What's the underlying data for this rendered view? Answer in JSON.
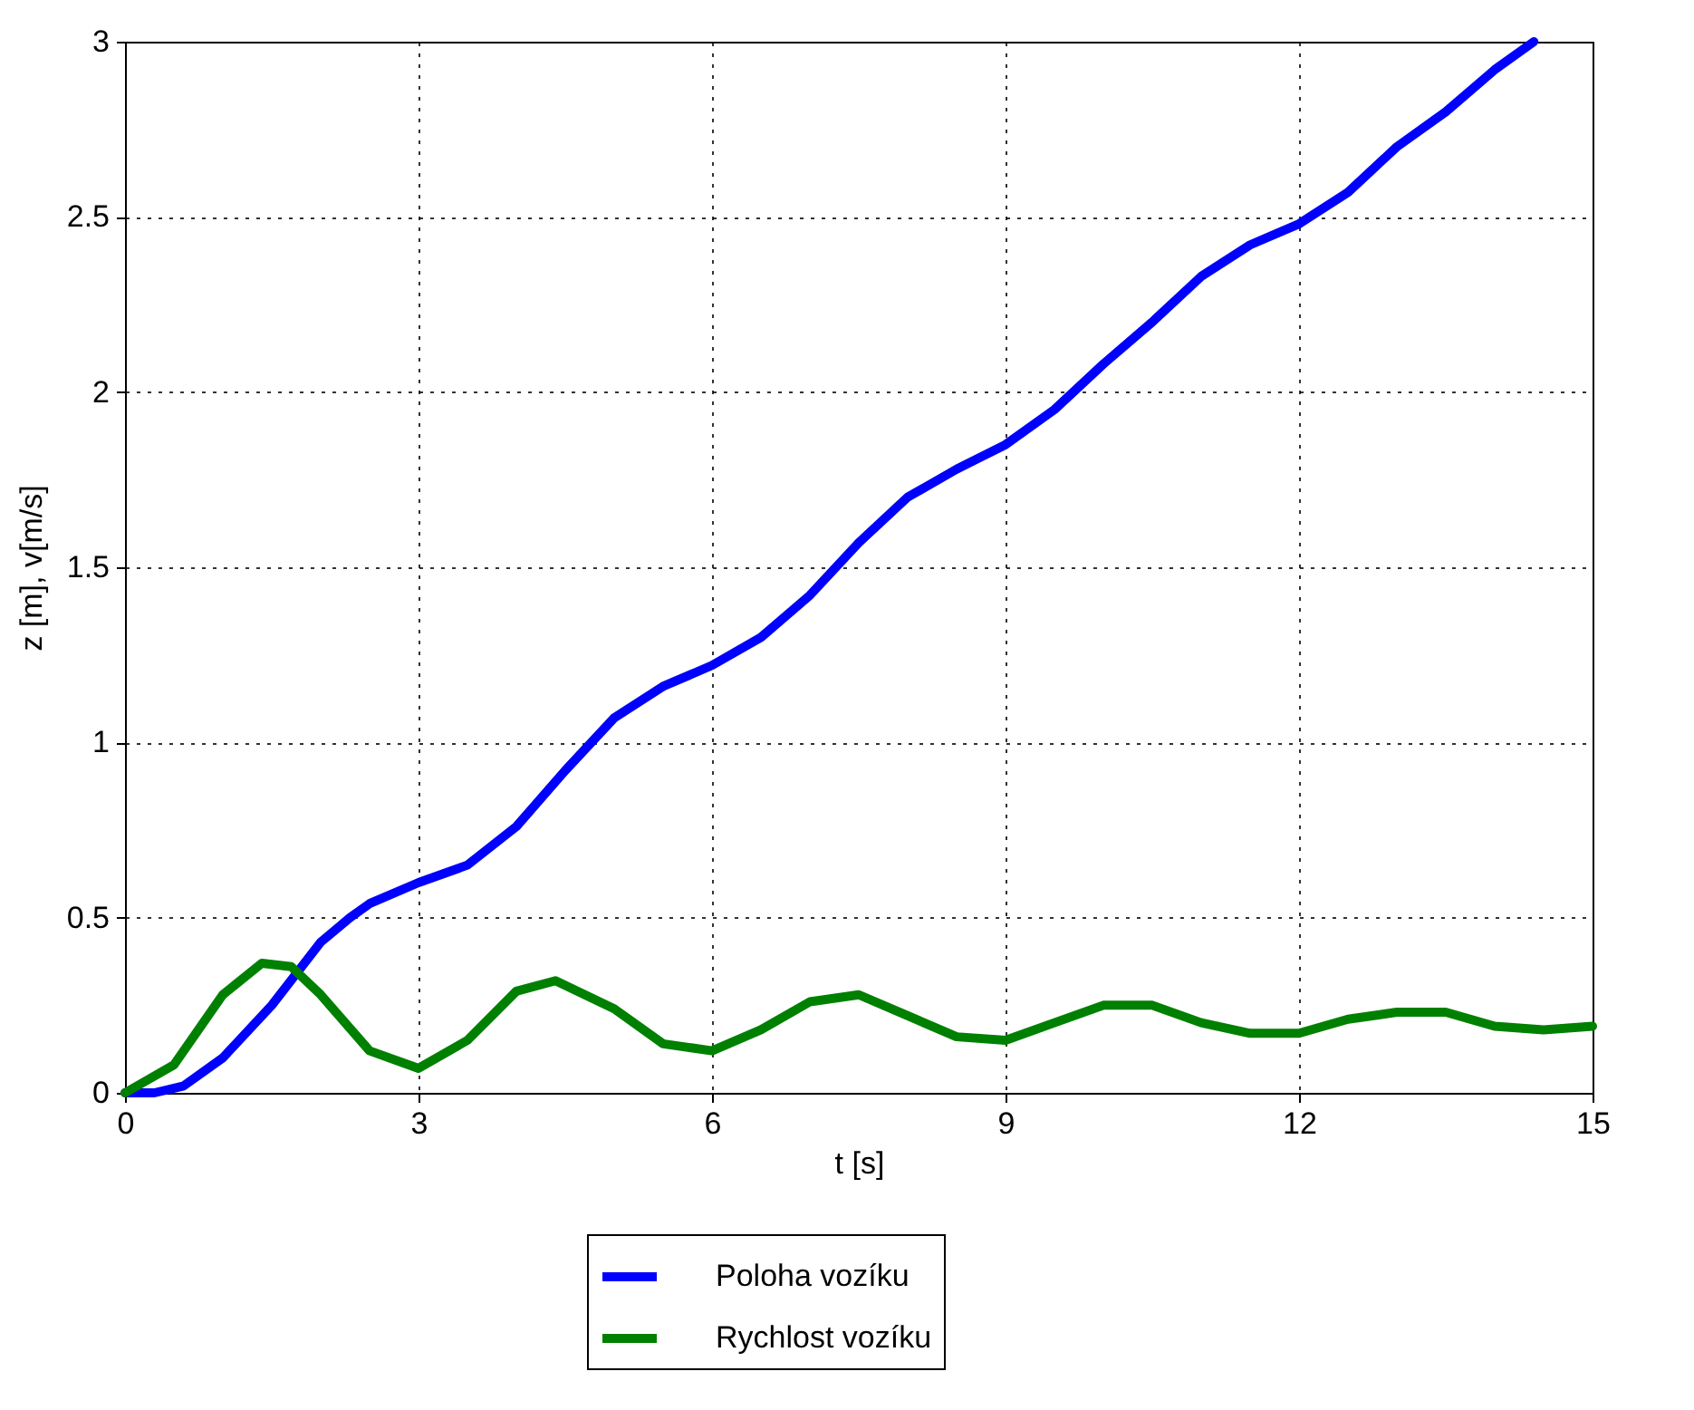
{
  "chart_data": {
    "type": "line",
    "xlabel": "t [s]",
    "ylabel": "z [m], v[m/s]",
    "xlim": [
      0,
      15
    ],
    "ylim": [
      0,
      3
    ],
    "xticks": [
      0,
      3,
      6,
      9,
      12,
      15
    ],
    "yticks": [
      0,
      0.5,
      1,
      1.5,
      2,
      2.5,
      3
    ],
    "grid": true,
    "legend": "bottom",
    "line_style": "solid",
    "marker": "none",
    "series": [
      {
        "name": "Poloha vozíku",
        "color": "#0000ff",
        "x": [
          0,
          0.3,
          0.6,
          1,
          1.5,
          2,
          2.3,
          2.5,
          3,
          3.5,
          4,
          4.5,
          5,
          5.5,
          6,
          6.5,
          7,
          7.5,
          8,
          8.5,
          9,
          9.5,
          10,
          10.5,
          11,
          11.5,
          12,
          12.5,
          13,
          13.5,
          14,
          14.4
        ],
        "values": [
          0,
          0,
          0.02,
          0.1,
          0.25,
          0.43,
          0.5,
          0.54,
          0.6,
          0.65,
          0.76,
          0.92,
          1.07,
          1.16,
          1.22,
          1.3,
          1.42,
          1.57,
          1.7,
          1.78,
          1.85,
          1.95,
          2.08,
          2.2,
          2.33,
          2.42,
          2.48,
          2.57,
          2.7,
          2.8,
          2.92,
          3.0
        ]
      },
      {
        "name": "Rychlost vozíku",
        "color": "#008000",
        "x": [
          0,
          0.5,
          1,
          1.4,
          1.7,
          2,
          2.5,
          3,
          3.5,
          4,
          4.4,
          5,
          5.5,
          6,
          6.5,
          7,
          7.5,
          8,
          8.5,
          9,
          9.5,
          10,
          10.5,
          11,
          11.5,
          12,
          12.5,
          13,
          13.5,
          14,
          14.5,
          15
        ],
        "values": [
          0,
          0.08,
          0.28,
          0.37,
          0.36,
          0.28,
          0.12,
          0.07,
          0.15,
          0.29,
          0.32,
          0.24,
          0.14,
          0.12,
          0.18,
          0.26,
          0.28,
          0.22,
          0.16,
          0.15,
          0.2,
          0.25,
          0.25,
          0.2,
          0.17,
          0.17,
          0.21,
          0.23,
          0.23,
          0.19,
          0.18,
          0.19
        ]
      }
    ]
  }
}
